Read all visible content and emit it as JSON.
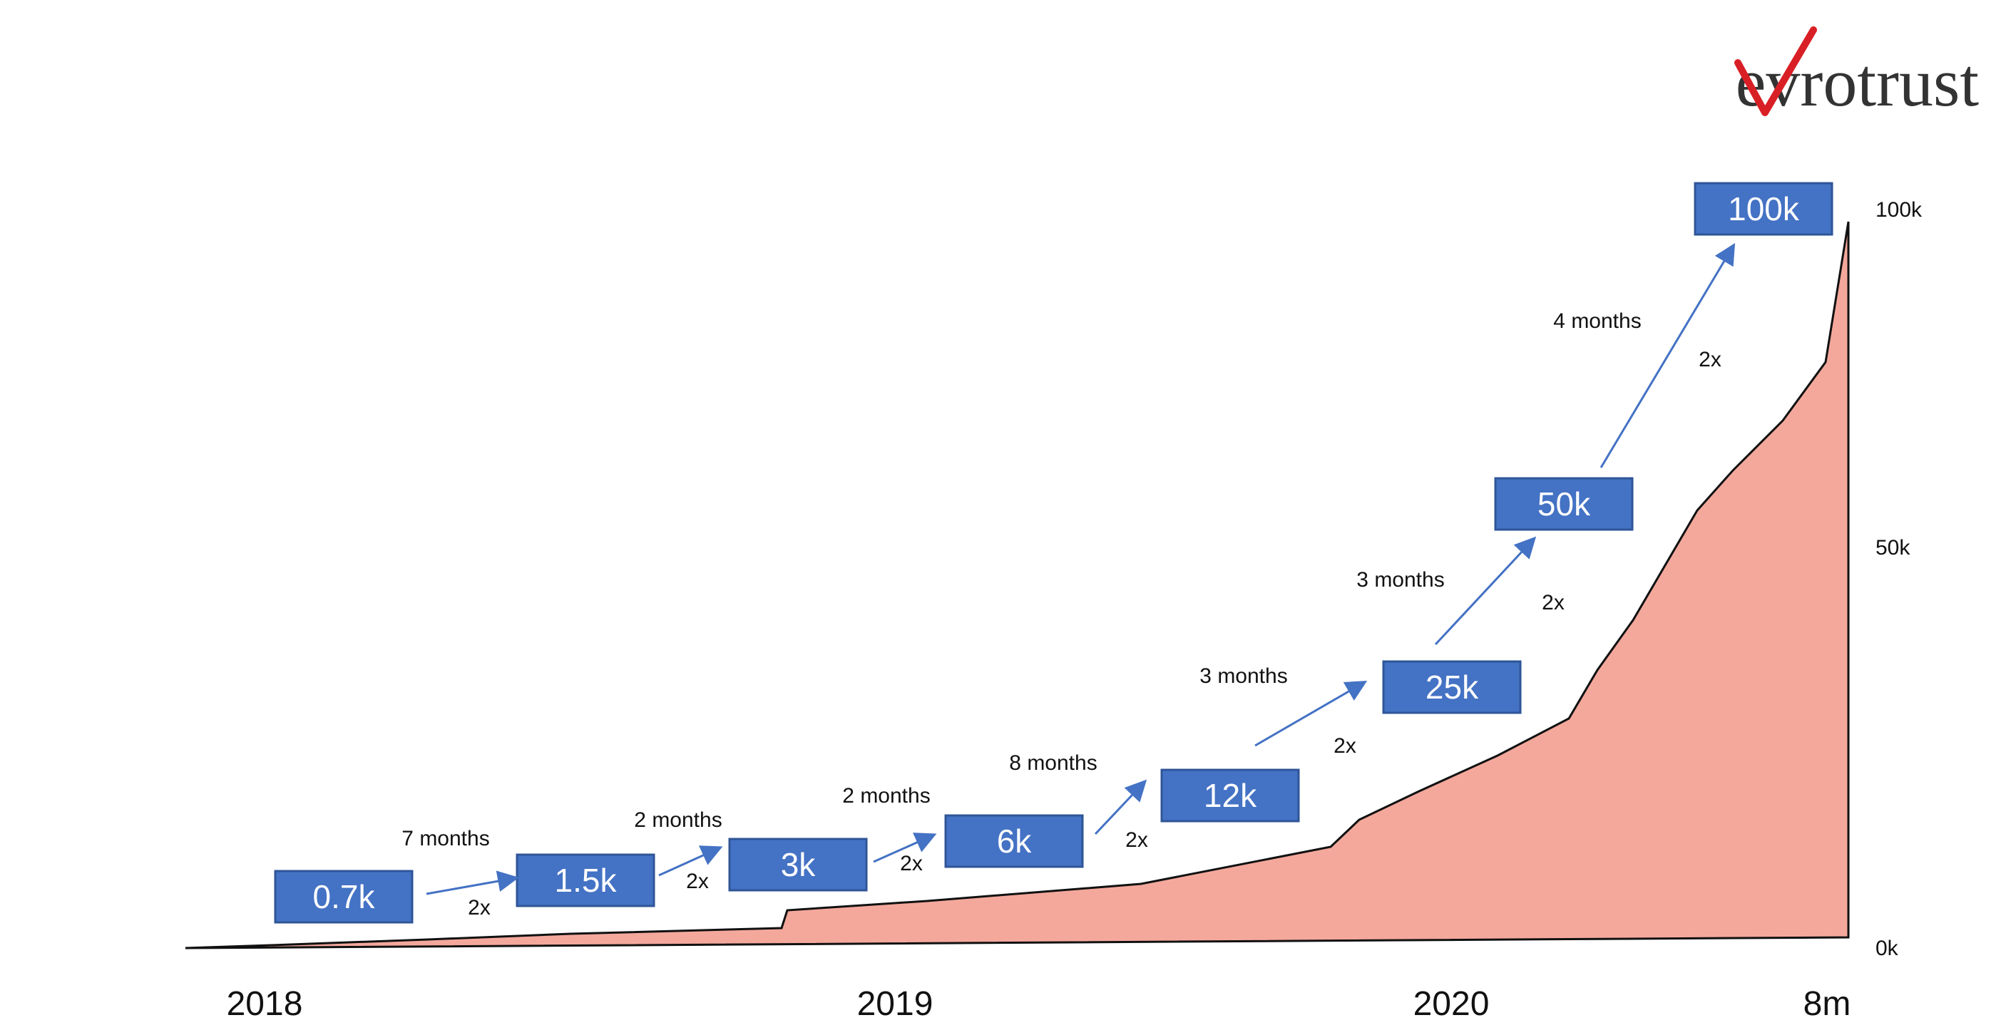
{
  "brand": {
    "logo_text": "evrotrust",
    "text_color": "#333333",
    "check_color": "#d91f26"
  },
  "colors": {
    "area_fill": "#f4a89c",
    "area_stroke": "#111111",
    "box_fill": "#4472c4",
    "box_border": "#2f5597",
    "box_text": "#ffffff",
    "arrow": "#4472c4",
    "label_text": "#111111"
  },
  "chart_data": {
    "type": "area",
    "x_tick_labels": [
      "2018",
      "2019",
      "2020",
      "8m"
    ],
    "y_tick_labels": [
      "100k",
      "50k",
      "0k"
    ],
    "ylim": [
      0,
      100000
    ],
    "series": [
      {
        "values_k": [
          0,
          2,
          4,
          5,
          7,
          8,
          9,
          10,
          11,
          12,
          13,
          15,
          16,
          17,
          18,
          20,
          30,
          53,
          80,
          100
        ]
      }
    ],
    "milestones": [
      {
        "label": "0.7k"
      },
      {
        "label": "1.5k"
      },
      {
        "label": "3k"
      },
      {
        "label": "6k"
      },
      {
        "label": "12k"
      },
      {
        "label": "25k"
      },
      {
        "label": "50k"
      },
      {
        "label": "100k"
      }
    ],
    "steps": [
      {
        "duration": "7 months",
        "factor": "2x"
      },
      {
        "duration": "2 months",
        "factor": "2x"
      },
      {
        "duration": "2 months",
        "factor": "2x"
      },
      {
        "duration": "8 months",
        "factor": "2x"
      },
      {
        "duration": "3 months",
        "factor": "2x"
      },
      {
        "duration": "3 months",
        "factor": "2x"
      },
      {
        "duration": "4 months",
        "factor": "2x"
      }
    ]
  }
}
